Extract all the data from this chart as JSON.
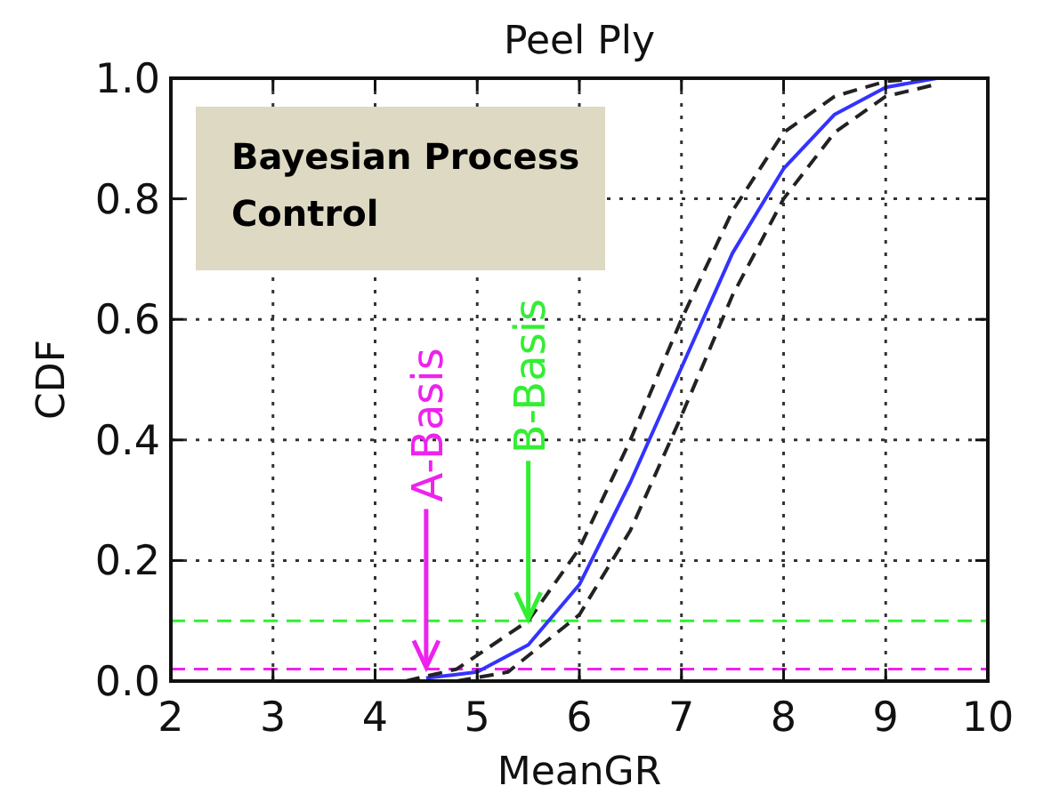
{
  "chart_data": {
    "type": "line",
    "title": "Peel Ply",
    "xlabel": "MeanGR",
    "ylabel": "CDF",
    "xlim": [
      2,
      10
    ],
    "xticks": [
      2,
      3,
      4,
      5,
      6,
      7,
      8,
      9,
      10
    ],
    "ylim": [
      0,
      1
    ],
    "yticks": [
      {
        "value": 0,
        "label": "0.0"
      },
      {
        "value": 0.2,
        "label": "0.2"
      },
      {
        "value": 0.4,
        "label": "0.4"
      },
      {
        "value": 0.6,
        "label": "0.6"
      },
      {
        "value": 0.8,
        "label": "0.8"
      },
      {
        "value": 1,
        "label": "1.0"
      }
    ],
    "grid": true,
    "series": [
      {
        "color": "#3333ff",
        "line_style": "solid",
        "x": [
          4.5,
          5,
          5.5,
          6,
          6.5,
          7,
          7.5,
          8,
          8.5,
          9,
          9.5
        ],
        "values": [
          0.005,
          0.015,
          0.06,
          0.16,
          0.33,
          0.52,
          0.71,
          0.85,
          0.94,
          0.985,
          1.0
        ]
      },
      {
        "color": "#222222",
        "line_style": "dashed",
        "x": [
          4.3,
          4.8,
          5.5,
          6,
          6.5,
          7,
          7.5,
          8,
          8.5,
          9,
          9.4
        ],
        "values": [
          0,
          0.02,
          0.1,
          0.22,
          0.4,
          0.6,
          0.78,
          0.91,
          0.97,
          0.995,
          1.0
        ]
      },
      {
        "color": "#222222",
        "line_style": "dashed",
        "x": [
          4.8,
          5.3,
          6,
          6.5,
          7,
          7.5,
          8,
          8.5,
          9,
          9.5
        ],
        "values": [
          0,
          0.015,
          0.11,
          0.25,
          0.44,
          0.64,
          0.8,
          0.91,
          0.97,
          0.99
        ]
      }
    ],
    "ref_lines": [
      {
        "axis": "y",
        "value": 0.1,
        "color": "#33ee33",
        "line_style": "dashed"
      },
      {
        "axis": "y",
        "value": 0.02,
        "color": "#ee22ee",
        "line_style": "dashed"
      }
    ],
    "annotations": [
      "Bayesian Process Control",
      {
        "text": "A-Basis",
        "x": 4.5,
        "y": 0.02
      },
      {
        "text": "B-Basis",
        "x": 5.5,
        "y": 0.1
      }
    ]
  }
}
